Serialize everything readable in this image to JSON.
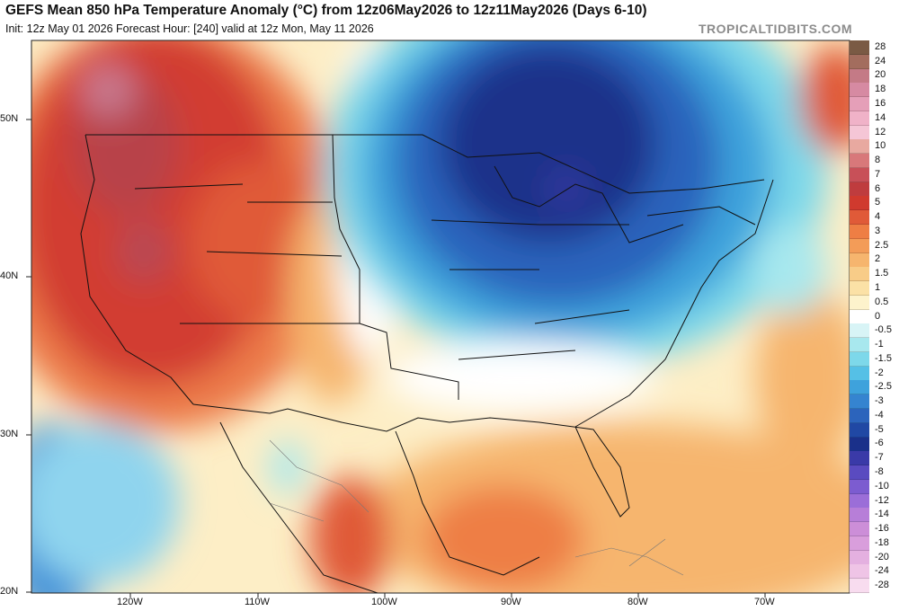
{
  "header": {
    "title": "GEFS Mean 850 hPa Temperature Anomaly (°C) from 12z06May2026 to 12z11May2026 (Days 6-10)",
    "subtitle": "Init: 12z May 01 2026   Forecast Hour: [240]   valid at 12z Mon, May 11 2026",
    "watermark": "TROPICALTIDBITS.COM"
  },
  "map": {
    "lat_labels": [
      "50N",
      "40N",
      "30N",
      "20N"
    ],
    "lon_labels": [
      "120W",
      "110W",
      "100W",
      "90W",
      "80W",
      "70W"
    ]
  },
  "legend": {
    "labels": [
      "28",
      "24",
      "20",
      "18",
      "16",
      "14",
      "12",
      "10",
      "8",
      "7",
      "6",
      "5",
      "4",
      "3",
      "2.5",
      "2",
      "1.5",
      "1",
      "0.5",
      "0",
      "-0.5",
      "-1",
      "-1.5",
      "-2",
      "-2.5",
      "-3",
      "-4",
      "-5",
      "-6",
      "-7",
      "-8",
      "-10",
      "-12",
      "-14",
      "-16",
      "-18",
      "-20",
      "-24",
      "-28"
    ],
    "colors": [
      "#7a5a44",
      "#a36d5e",
      "#c47a86",
      "#d68aa2",
      "#e59fb8",
      "#f0b2c8",
      "#f5c6d6",
      "#e8a9a0",
      "#d8787a",
      "#c85058",
      "#bf3c3e",
      "#d03a2e",
      "#e05a38",
      "#ee7e44",
      "#f39c58",
      "#f6b56e",
      "#f8cc88",
      "#fbe1a6",
      "#fdf3cc",
      "#ffffff",
      "#d8f4f6",
      "#a8e8ee",
      "#7dd8ea",
      "#55c0e6",
      "#3ea2dc",
      "#3584d0",
      "#2c64bc",
      "#2048a4",
      "#1a308a",
      "#3a3aa8",
      "#5a4bc0",
      "#7c5cd0",
      "#9b6ed8",
      "#b77ed8",
      "#cc8ed8",
      "#d99edc",
      "#e4b0e0",
      "#efc4e6",
      "#f8dcef"
    ]
  }
}
